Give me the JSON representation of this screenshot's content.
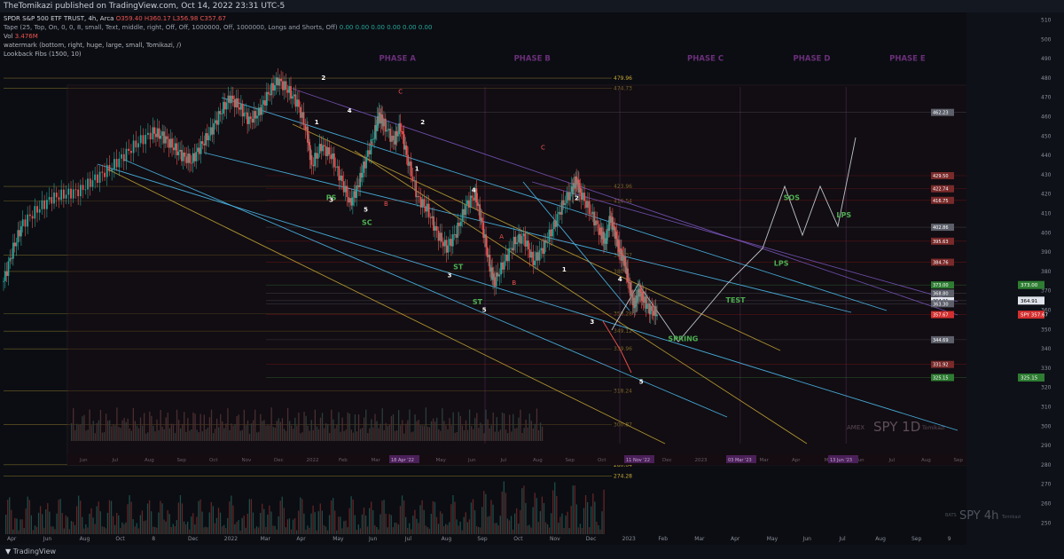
{
  "header": {
    "publisher": "TheTomikazi published on TradingView.com, Oct 14, 2022 23:31 UTC-5"
  },
  "legend": {
    "title": "SPDR S&P 500 ETF TRUST, 4h, Arca",
    "ohlc": "O359.40 H360.17 L356.98 C357.67",
    "tape": "Tape (25, Top, On, 0, 0, 8, small, Text, middle, right, Off, Off, 1000000, Off, 1000000, Longs and Shorts, Off)",
    "tape_values": "0.00  0.00  0.00  0.00  0.00  0.00",
    "vol_label": "Vol",
    "vol_value": "3.476M",
    "watermark": "watermark (bottom, right, huge, large, small, Tomikazi, /)",
    "fibs": "Lookback Fibs (1500, 10)"
  },
  "footer": {
    "brand": "TradingView"
  },
  "colors": {
    "bull": "#26a69a",
    "bear": "#ef5350",
    "channel": "#4fc3f7",
    "wyckoff": "#4caf50",
    "phase": "#9c27b0",
    "fib": "#c8a837"
  },
  "chart_data": {
    "type": "candlestick",
    "symbol": "SPY",
    "interval": "4h",
    "yaxis": {
      "ticks": [
        510,
        500,
        490,
        480,
        470,
        460,
        450,
        440,
        430,
        420,
        410,
        400,
        390,
        380,
        370,
        360,
        350,
        340,
        330,
        320,
        310,
        300,
        290,
        280,
        270,
        260,
        250
      ],
      "ylim": [
        246,
        513
      ]
    },
    "xaxis": {
      "ticks": [
        {
          "label": "Apr",
          "pos": 0.01
        },
        {
          "label": "Jun",
          "pos": 0.07
        },
        {
          "label": "Aug",
          "pos": 0.13
        },
        {
          "label": "Oct",
          "pos": 0.19
        },
        {
          "label": "8",
          "pos": 0.23
        },
        {
          "label": "Dec",
          "pos": 0.27
        },
        {
          "label": "2022",
          "pos": 0.31
        },
        {
          "label": "Mar",
          "pos": 0.35
        },
        {
          "label": "Apr",
          "pos": 0.39
        },
        {
          "label": "May",
          "pos": 0.43
        },
        {
          "label": "Jun",
          "pos": 0.475
        },
        {
          "label": "Jul",
          "pos": 0.515
        },
        {
          "label": "Aug",
          "pos": 0.555
        },
        {
          "label": "Sep",
          "pos": 0.595
        },
        {
          "label": "Oct",
          "pos": 0.64
        },
        {
          "label": "Nov",
          "pos": 0.685
        },
        {
          "label": "Dec",
          "pos": 0.725
        },
        {
          "label": "2023",
          "pos": 0.765
        },
        {
          "label": "Feb",
          "pos": 0.805
        },
        {
          "label": "Mar",
          "pos": 0.845
        },
        {
          "label": "Apr",
          "pos": 0.88
        },
        {
          "label": "May",
          "pos": 0.915
        },
        {
          "label": "Jun",
          "pos": 0.95
        },
        {
          "label": "Jul",
          "pos": 0.99
        }
      ]
    },
    "bottom_axis": [
      "Apr",
      "Jun",
      "Aug",
      "Oct",
      "8",
      "Dec",
      "2022",
      "Mar",
      "Apr",
      "May",
      "Jun",
      "Jul",
      "Aug",
      "Sep",
      "Oct",
      "Nov",
      "Dec",
      "2023",
      "Feb",
      "Mar",
      "Apr",
      "May",
      "Jun",
      "Jul",
      "Aug",
      "Sep",
      "9"
    ],
    "price_path": [
      [
        0.0,
        375
      ],
      [
        0.01,
        392
      ],
      [
        0.02,
        405
      ],
      [
        0.035,
        412
      ],
      [
        0.05,
        418
      ],
      [
        0.065,
        420
      ],
      [
        0.08,
        422
      ],
      [
        0.095,
        428
      ],
      [
        0.11,
        433
      ],
      [
        0.125,
        440
      ],
      [
        0.14,
        447
      ],
      [
        0.155,
        452
      ],
      [
        0.165,
        450
      ],
      [
        0.175,
        445
      ],
      [
        0.185,
        440
      ],
      [
        0.195,
        437
      ],
      [
        0.205,
        445
      ],
      [
        0.215,
        452
      ],
      [
        0.225,
        462
      ],
      [
        0.235,
        470
      ],
      [
        0.245,
        465
      ],
      [
        0.255,
        458
      ],
      [
        0.265,
        462
      ],
      [
        0.275,
        472
      ],
      [
        0.285,
        479
      ],
      [
        0.295,
        474
      ],
      [
        0.305,
        467
      ],
      [
        0.315,
        452
      ],
      [
        0.32,
        435
      ],
      [
        0.33,
        445
      ],
      [
        0.34,
        440
      ],
      [
        0.35,
        428
      ],
      [
        0.36,
        415
      ],
      [
        0.368,
        424
      ],
      [
        0.375,
        436
      ],
      [
        0.385,
        451
      ],
      [
        0.39,
        461
      ],
      [
        0.395,
        456
      ],
      [
        0.405,
        447
      ],
      [
        0.412,
        455
      ],
      [
        0.42,
        437
      ],
      [
        0.43,
        418
      ],
      [
        0.44,
        412
      ],
      [
        0.45,
        400
      ],
      [
        0.46,
        392
      ],
      [
        0.47,
        400
      ],
      [
        0.48,
        414
      ],
      [
        0.49,
        420
      ],
      [
        0.497,
        404
      ],
      [
        0.505,
        382
      ],
      [
        0.51,
        375
      ],
      [
        0.52,
        385
      ],
      [
        0.53,
        395
      ],
      [
        0.54,
        398
      ],
      [
        0.55,
        385
      ],
      [
        0.56,
        392
      ],
      [
        0.57,
        402
      ],
      [
        0.58,
        414
      ],
      [
        0.59,
        422
      ],
      [
        0.595,
        427
      ],
      [
        0.6,
        420
      ],
      [
        0.61,
        410
      ],
      [
        0.62,
        400
      ],
      [
        0.625,
        395
      ],
      [
        0.63,
        408
      ],
      [
        0.635,
        400
      ],
      [
        0.64,
        390
      ],
      [
        0.645,
        385
      ],
      [
        0.65,
        372
      ],
      [
        0.655,
        362
      ],
      [
        0.66,
        370
      ],
      [
        0.665,
        365
      ],
      [
        0.672,
        360
      ],
      [
        0.68,
        358
      ]
    ],
    "annotations": [
      {
        "text": "PHASE A",
        "x": 0.39,
        "y": 489,
        "kind": "phase"
      },
      {
        "text": "PHASE B",
        "x": 0.53,
        "y": 489,
        "kind": "phase"
      },
      {
        "text": "PHASE C",
        "x": 0.71,
        "y": 489,
        "kind": "phase"
      },
      {
        "text": "PHASE D",
        "x": 0.82,
        "y": 489,
        "kind": "phase"
      },
      {
        "text": "PHASE E",
        "x": 0.92,
        "y": 489,
        "kind": "phase"
      },
      {
        "text": "SOS",
        "x": 0.81,
        "y": 417,
        "kind": "wyckoff"
      },
      {
        "text": "LPS",
        "x": 0.865,
        "y": 408,
        "kind": "wyckoff"
      },
      {
        "text": "LPS",
        "x": 0.8,
        "y": 383,
        "kind": "wyckoff"
      },
      {
        "text": "TEST",
        "x": 0.75,
        "y": 364,
        "kind": "wyckoff"
      },
      {
        "text": "SPRING",
        "x": 0.69,
        "y": 344,
        "kind": "wyckoff"
      },
      {
        "text": "PS",
        "x": 0.335,
        "y": 417,
        "kind": "wyckoff"
      },
      {
        "text": "SC",
        "x": 0.372,
        "y": 404,
        "kind": "wyckoff"
      },
      {
        "text": "ST",
        "x": 0.467,
        "y": 381,
        "kind": "wyckoff"
      },
      {
        "text": "ST",
        "x": 0.487,
        "y": 363,
        "kind": "wyckoff"
      },
      {
        "text": "2",
        "x": 0.33,
        "y": 479,
        "kind": "wave"
      },
      {
        "text": "1",
        "x": 0.323,
        "y": 456,
        "kind": "wave"
      },
      {
        "text": "4",
        "x": 0.357,
        "y": 462,
        "kind": "wave"
      },
      {
        "text": "A",
        "x": 0.38,
        "y": 445,
        "kind": "wave-red"
      },
      {
        "text": "3",
        "x": 0.338,
        "y": 416,
        "kind": "wave"
      },
      {
        "text": "5",
        "x": 0.374,
        "y": 411,
        "kind": "wave"
      },
      {
        "text": "B",
        "x": 0.395,
        "y": 414,
        "kind": "wave-red"
      },
      {
        "text": "C",
        "x": 0.41,
        "y": 472,
        "kind": "wave-red"
      },
      {
        "text": "2",
        "x": 0.433,
        "y": 456,
        "kind": "wave"
      },
      {
        "text": "1",
        "x": 0.427,
        "y": 432,
        "kind": "wave"
      },
      {
        "text": "4",
        "x": 0.486,
        "y": 421,
        "kind": "wave"
      },
      {
        "text": "A",
        "x": 0.515,
        "y": 397,
        "kind": "wave-red"
      },
      {
        "text": "3",
        "x": 0.461,
        "y": 377,
        "kind": "wave"
      },
      {
        "text": "B",
        "x": 0.528,
        "y": 373,
        "kind": "wave-red"
      },
      {
        "text": "5",
        "x": 0.497,
        "y": 359,
        "kind": "wave"
      },
      {
        "text": "C",
        "x": 0.558,
        "y": 443,
        "kind": "wave-red"
      },
      {
        "text": "2",
        "x": 0.593,
        "y": 417,
        "kind": "wave"
      },
      {
        "text": "1",
        "x": 0.58,
        "y": 380,
        "kind": "wave"
      },
      {
        "text": "4",
        "x": 0.638,
        "y": 375,
        "kind": "wave"
      },
      {
        "text": "3",
        "x": 0.609,
        "y": 353,
        "kind": "wave"
      },
      {
        "text": "5",
        "x": 0.66,
        "y": 322,
        "kind": "wave"
      }
    ],
    "fib_levels": [
      {
        "value": "479.96",
        "y": 479.96
      },
      {
        "value": "474.73",
        "y": 474.73
      },
      {
        "value": "423.96",
        "y": 423.96
      },
      {
        "value": "416.54",
        "y": 416.54
      },
      {
        "value": "388.37",
        "y": 388.37
      },
      {
        "value": "380",
        "y": 380
      },
      {
        "value": "358.28",
        "y": 358.28
      },
      {
        "value": "349.12",
        "y": 349.12
      },
      {
        "value": "339.96",
        "y": 339.96
      },
      {
        "value": "318.24",
        "y": 318.24
      },
      {
        "value": "300.87",
        "y": 300.87
      },
      {
        "value": "280.04",
        "y": 280.04
      },
      {
        "value": "274.28",
        "y": 274.28
      }
    ],
    "price_labels": [
      {
        "text": "462.23",
        "y": 462.23,
        "bg": "#5d606b"
      },
      {
        "text": "429.50",
        "y": 429.5,
        "bg": "#7a2a2a"
      },
      {
        "text": "SPY  422.74",
        "y": 422.74,
        "bg": "#7a2a2a"
      },
      {
        "text": "416.75",
        "y": 416.75,
        "bg": "#7a2a2a"
      },
      {
        "text": "402.86",
        "y": 402.86,
        "bg": "#5d606b"
      },
      {
        "text": "395.63",
        "y": 395.63,
        "bg": "#7a2a2a"
      },
      {
        "text": "384.76",
        "y": 384.76,
        "bg": "#7a2a2a"
      },
      {
        "text": "373.00",
        "y": 373.0,
        "bg": "#2e7d32"
      },
      {
        "text": "368.80",
        "y": 368.8,
        "bg": "#5d606b"
      },
      {
        "text": "364.91",
        "y": 364.91,
        "bg": "#e0e3eb"
      },
      {
        "text": "363.30",
        "y": 363.3,
        "bg": "#5d606b"
      },
      {
        "text": "SPY  357.67",
        "y": 357.67,
        "bg": "#d32f2f"
      },
      {
        "text": "344.69",
        "y": 344.69,
        "bg": "#5d606b"
      },
      {
        "text": "331.92",
        "y": 331.92,
        "bg": "#7a2a2a"
      },
      {
        "text": "325.15",
        "y": 325.15,
        "bg": "#2e7d32"
      }
    ],
    "inset": {
      "label": "SPY 1D",
      "exchange": "AMEX",
      "author": "Tomikazi",
      "axis": [
        "Jun",
        "Jul",
        "Aug",
        "Sep",
        "Oct",
        "Nov",
        "Dec",
        "2022",
        "Feb",
        "Mar",
        "Apr",
        "May",
        "Jun",
        "Jul",
        "Aug",
        "Sep",
        "Oct",
        "Nov",
        "Dec",
        "2023",
        "Feb",
        "Mar",
        "Apr",
        "May",
        "Jun",
        "Jul",
        "Aug",
        "Sep"
      ],
      "axis_marks": [
        "18 Apr '22",
        "11 Nov '22",
        "03 Mar '23",
        "13 Jun '23"
      ]
    },
    "watermark": {
      "label": "SPY 4h",
      "exchange": "BATS",
      "author": "Tomikazi"
    }
  }
}
